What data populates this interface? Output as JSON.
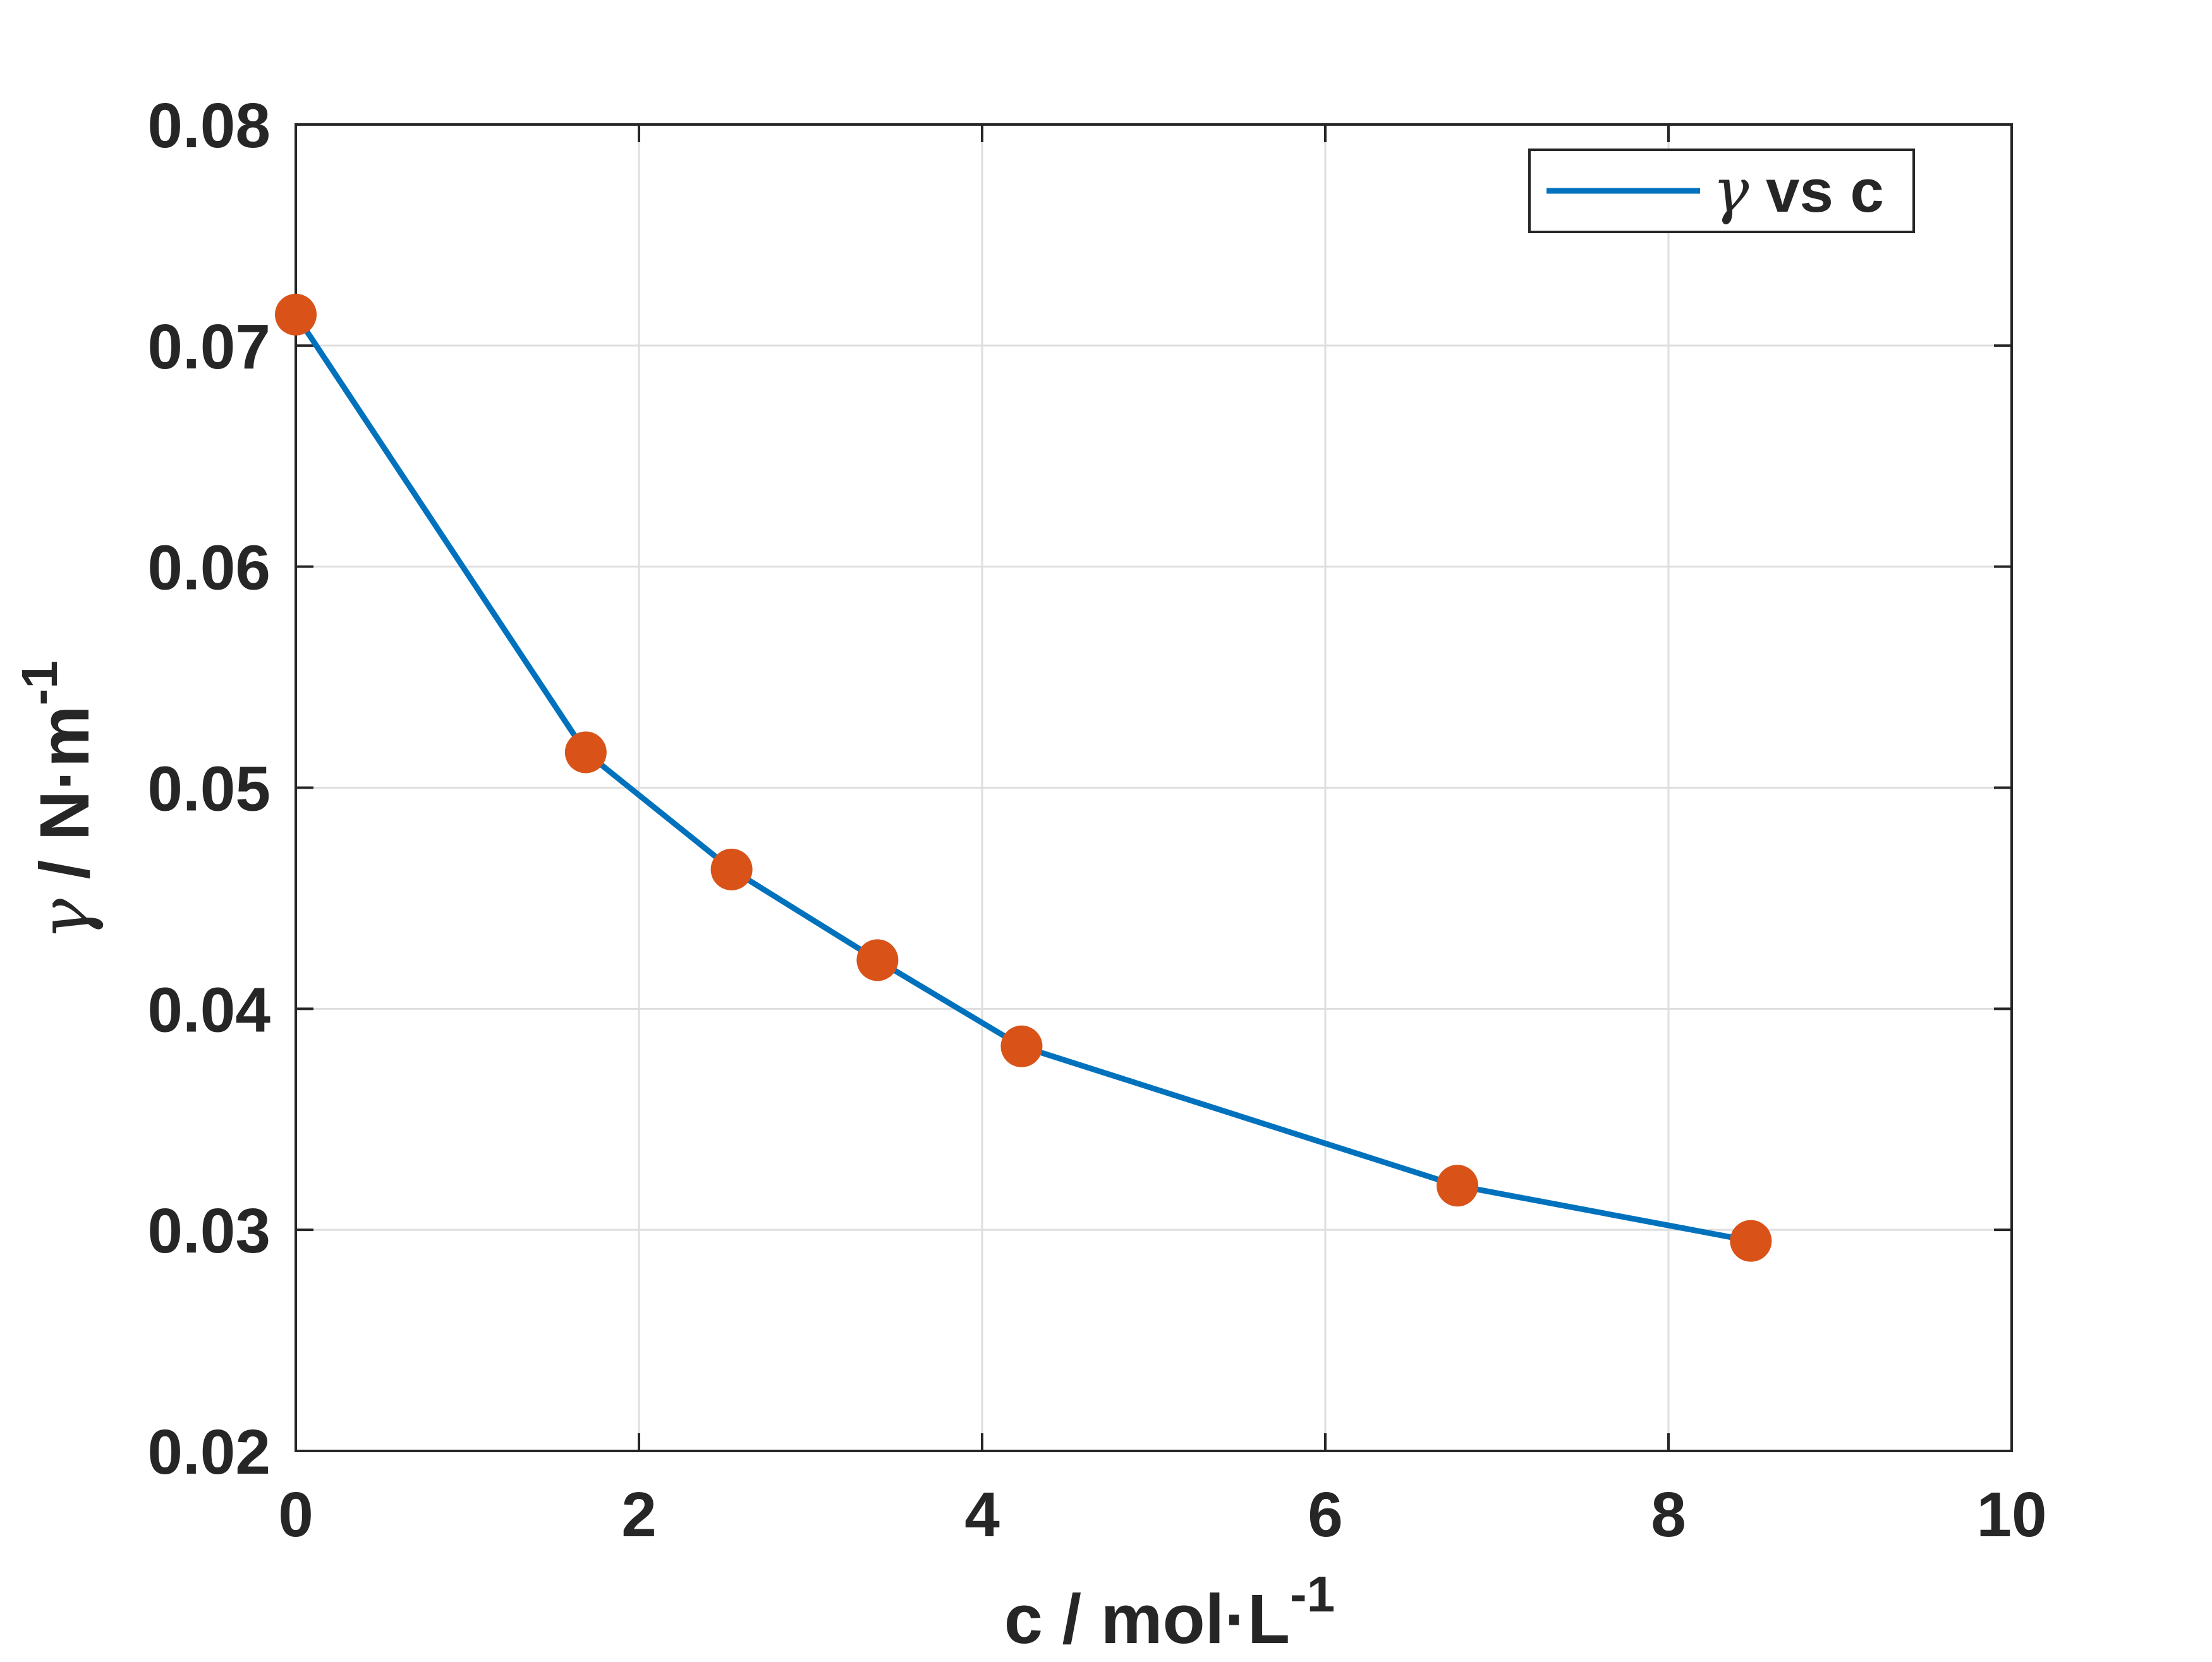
{
  "chart_data": {
    "type": "line",
    "xlabel": {
      "text": "c / mol·L",
      "superscript": "-1"
    },
    "ylabel": {
      "symbol": "γ",
      "text": " / N·m",
      "superscript": "-1"
    },
    "xlim": [
      0,
      10
    ],
    "ylim": [
      0.02,
      0.08
    ],
    "xticks": [
      0,
      2,
      4,
      6,
      8,
      10
    ],
    "yticks": [
      0.02,
      0.03,
      0.04,
      0.05,
      0.06,
      0.07,
      0.08
    ],
    "grid": true,
    "legend": {
      "position": "top-right",
      "entries": [
        {
          "symbol": "γ",
          "text": " vs c"
        }
      ]
    },
    "series": [
      {
        "name": "γ vs c",
        "line_color": "#0072BD",
        "marker_color": "#D95319",
        "x": [
          0,
          1.69,
          2.54,
          3.39,
          4.23,
          6.77,
          8.48
        ],
        "y": [
          0.0714,
          0.0516,
          0.0463,
          0.0422,
          0.0383,
          0.032,
          0.0295
        ]
      }
    ]
  },
  "colors": {
    "axes": "#262626",
    "grid": "#DEDEDE",
    "background": "#FFFFFF"
  }
}
